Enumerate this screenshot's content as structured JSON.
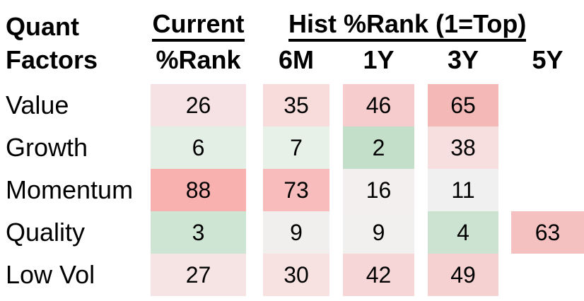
{
  "table": {
    "title_line1": "Quant",
    "title_line2": "Factors",
    "group_current": "Current",
    "group_hist": "Hist %Rank (1=Top)",
    "columns": [
      "%Rank",
      "6M",
      "1Y",
      "3Y",
      "5Y"
    ]
  },
  "chart_data": {
    "type": "heatmap",
    "title": "Quant Factors",
    "row_header": "Quant Factors",
    "column_groups": [
      {
        "label": "Current",
        "columns": [
          "%Rank"
        ]
      },
      {
        "label": "Hist %Rank (1=Top)",
        "columns": [
          "6M",
          "1Y",
          "3Y",
          "5Y"
        ]
      }
    ],
    "columns": [
      "Current %Rank",
      "6M",
      "1Y",
      "3Y",
      "5Y"
    ],
    "rows": [
      "Value",
      "Growth",
      "Momentum",
      "Quality",
      "Low Vol"
    ],
    "values": [
      [
        26,
        35,
        46,
        65,
        null
      ],
      [
        6,
        7,
        2,
        38,
        null
      ],
      [
        88,
        73,
        16,
        11,
        null
      ],
      [
        3,
        9,
        9,
        4,
        63
      ],
      [
        27,
        30,
        42,
        49,
        null
      ]
    ],
    "cell_colors": [
      [
        "#f6e2e4",
        "#f8dcdc",
        "#f6cccd",
        "#f4b9b6",
        null
      ],
      [
        "#e3efe5",
        "#e7f1e8",
        "#c4dfc9",
        "#f7dedf",
        null
      ],
      [
        "#f8b1ae",
        "#f7bcbb",
        "#f3efee",
        "#f1f0f1",
        null
      ],
      [
        "#cfe5d3",
        "#f0efee",
        "#f1f0ef",
        "#cde3d1",
        "#f5c0c0"
      ],
      [
        "#f6e3e4",
        "#f8e2e1",
        "#f6d6d7",
        "#f5d1d1",
        null
      ]
    ],
    "value_range": [
      1,
      100
    ],
    "rank_note": "1=Top",
    "color_scale": {
      "low": "#c4dfc9",
      "mid": "#f1f0f0",
      "high": "#f8b1ae",
      "meaning": "low percentile rank (top) = green, mid = near-white, high percentile rank = red"
    },
    "grid": false,
    "legend": "none"
  }
}
